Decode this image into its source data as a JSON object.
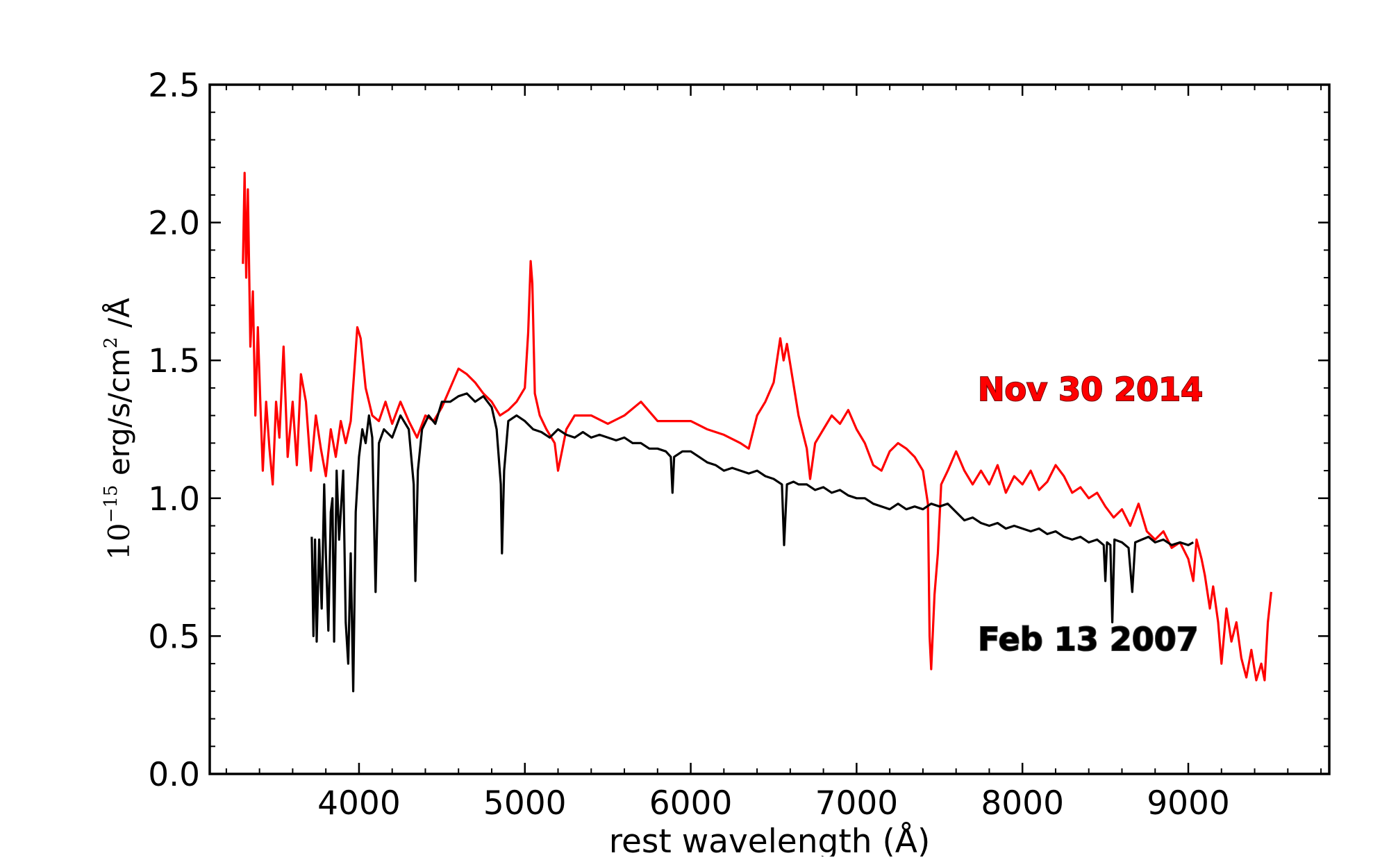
{
  "chart_data": {
    "type": "line",
    "title": "",
    "xlabel": "rest wavelength (Å)",
    "ylabel": {
      "base": "10",
      "exponent": "−15",
      "unit_main": " erg/s/cm",
      "unit_exp": "2",
      "unit_tail": " /Å"
    },
    "xlim": [
      3100,
      9850
    ],
    "ylim": [
      0.0,
      2.5
    ],
    "x_ticks": [
      4000,
      5000,
      6000,
      7000,
      8000,
      9000
    ],
    "x_tick_labels": [
      "4000",
      "5000",
      "6000",
      "7000",
      "8000",
      "9000"
    ],
    "y_ticks": [
      0.0,
      0.5,
      1.0,
      1.5,
      2.0,
      2.5
    ],
    "y_tick_labels": [
      "0.0",
      "0.5",
      "1.0",
      "1.5",
      "2.0",
      "2.5"
    ],
    "grid": false,
    "series": [
      {
        "name": "Nov 30 2014",
        "color": "#ff0000",
        "label_position": "right",
        "points": [
          [
            3300,
            1.85
          ],
          [
            3310,
            2.18
          ],
          [
            3320,
            1.8
          ],
          [
            3330,
            2.12
          ],
          [
            3345,
            1.55
          ],
          [
            3360,
            1.75
          ],
          [
            3375,
            1.3
          ],
          [
            3390,
            1.62
          ],
          [
            3405,
            1.35
          ],
          [
            3420,
            1.1
          ],
          [
            3440,
            1.35
          ],
          [
            3460,
            1.18
          ],
          [
            3480,
            1.05
          ],
          [
            3500,
            1.35
          ],
          [
            3520,
            1.22
          ],
          [
            3545,
            1.55
          ],
          [
            3570,
            1.15
          ],
          [
            3600,
            1.35
          ],
          [
            3625,
            1.12
          ],
          [
            3650,
            1.45
          ],
          [
            3680,
            1.35
          ],
          [
            3710,
            1.1
          ],
          [
            3740,
            1.3
          ],
          [
            3770,
            1.18
          ],
          [
            3800,
            1.08
          ],
          [
            3830,
            1.25
          ],
          [
            3860,
            1.15
          ],
          [
            3890,
            1.28
          ],
          [
            3920,
            1.2
          ],
          [
            3950,
            1.28
          ],
          [
            3970,
            1.45
          ],
          [
            3990,
            1.62
          ],
          [
            4010,
            1.58
          ],
          [
            4040,
            1.4
          ],
          [
            4080,
            1.3
          ],
          [
            4120,
            1.28
          ],
          [
            4160,
            1.35
          ],
          [
            4200,
            1.27
          ],
          [
            4250,
            1.35
          ],
          [
            4300,
            1.28
          ],
          [
            4350,
            1.22
          ],
          [
            4400,
            1.3
          ],
          [
            4450,
            1.28
          ],
          [
            4500,
            1.33
          ],
          [
            4550,
            1.4
          ],
          [
            4600,
            1.47
          ],
          [
            4650,
            1.45
          ],
          [
            4700,
            1.42
          ],
          [
            4750,
            1.38
          ],
          [
            4800,
            1.35
          ],
          [
            4850,
            1.3
          ],
          [
            4900,
            1.32
          ],
          [
            4950,
            1.35
          ],
          [
            5000,
            1.4
          ],
          [
            5020,
            1.6
          ],
          [
            5035,
            1.86
          ],
          [
            5045,
            1.78
          ],
          [
            5060,
            1.38
          ],
          [
            5090,
            1.3
          ],
          [
            5130,
            1.25
          ],
          [
            5180,
            1.2
          ],
          [
            5200,
            1.1
          ],
          [
            5250,
            1.25
          ],
          [
            5300,
            1.3
          ],
          [
            5400,
            1.3
          ],
          [
            5500,
            1.27
          ],
          [
            5600,
            1.3
          ],
          [
            5700,
            1.35
          ],
          [
            5800,
            1.28
          ],
          [
            5900,
            1.28
          ],
          [
            6000,
            1.28
          ],
          [
            6100,
            1.25
          ],
          [
            6200,
            1.23
          ],
          [
            6300,
            1.2
          ],
          [
            6350,
            1.18
          ],
          [
            6400,
            1.3
          ],
          [
            6450,
            1.35
          ],
          [
            6500,
            1.42
          ],
          [
            6540,
            1.58
          ],
          [
            6560,
            1.5
          ],
          [
            6580,
            1.56
          ],
          [
            6610,
            1.45
          ],
          [
            6650,
            1.3
          ],
          [
            6700,
            1.18
          ],
          [
            6720,
            1.07
          ],
          [
            6750,
            1.2
          ],
          [
            6800,
            1.25
          ],
          [
            6850,
            1.3
          ],
          [
            6900,
            1.27
          ],
          [
            6950,
            1.32
          ],
          [
            7000,
            1.25
          ],
          [
            7050,
            1.2
          ],
          [
            7100,
            1.12
          ],
          [
            7150,
            1.1
          ],
          [
            7200,
            1.17
          ],
          [
            7250,
            1.2
          ],
          [
            7300,
            1.18
          ],
          [
            7350,
            1.15
          ],
          [
            7400,
            1.1
          ],
          [
            7430,
            0.98
          ],
          [
            7440,
            0.5
          ],
          [
            7450,
            0.38
          ],
          [
            7470,
            0.65
          ],
          [
            7490,
            0.8
          ],
          [
            7510,
            1.05
          ],
          [
            7550,
            1.1
          ],
          [
            7600,
            1.17
          ],
          [
            7650,
            1.1
          ],
          [
            7700,
            1.05
          ],
          [
            7750,
            1.1
          ],
          [
            7800,
            1.05
          ],
          [
            7850,
            1.12
          ],
          [
            7900,
            1.02
          ],
          [
            7950,
            1.08
          ],
          [
            8000,
            1.05
          ],
          [
            8050,
            1.1
          ],
          [
            8100,
            1.03
          ],
          [
            8150,
            1.06
          ],
          [
            8200,
            1.12
          ],
          [
            8250,
            1.08
          ],
          [
            8300,
            1.02
          ],
          [
            8350,
            1.04
          ],
          [
            8400,
            1.0
          ],
          [
            8450,
            1.02
          ],
          [
            8500,
            0.97
          ],
          [
            8550,
            0.93
          ],
          [
            8600,
            0.96
          ],
          [
            8650,
            0.9
          ],
          [
            8700,
            0.98
          ],
          [
            8750,
            0.88
          ],
          [
            8800,
            0.85
          ],
          [
            8850,
            0.88
          ],
          [
            8900,
            0.82
          ],
          [
            8950,
            0.84
          ],
          [
            9000,
            0.78
          ],
          [
            9030,
            0.7
          ],
          [
            9050,
            0.85
          ],
          [
            9080,
            0.78
          ],
          [
            9100,
            0.72
          ],
          [
            9130,
            0.6
          ],
          [
            9150,
            0.68
          ],
          [
            9180,
            0.55
          ],
          [
            9200,
            0.4
          ],
          [
            9230,
            0.6
          ],
          [
            9260,
            0.48
          ],
          [
            9290,
            0.55
          ],
          [
            9320,
            0.42
          ],
          [
            9350,
            0.35
          ],
          [
            9380,
            0.45
          ],
          [
            9410,
            0.34
          ],
          [
            9440,
            0.4
          ],
          [
            9460,
            0.34
          ],
          [
            9480,
            0.55
          ],
          [
            9500,
            0.66
          ]
        ]
      },
      {
        "name": "Feb 13 2007",
        "color": "#000000",
        "label_position": "bottom-right",
        "points": [
          [
            3715,
            0.86
          ],
          [
            3725,
            0.5
          ],
          [
            3735,
            0.85
          ],
          [
            3745,
            0.48
          ],
          [
            3760,
            0.85
          ],
          [
            3775,
            0.6
          ],
          [
            3790,
            1.05
          ],
          [
            3800,
            0.8
          ],
          [
            3815,
            0.52
          ],
          [
            3830,
            0.95
          ],
          [
            3840,
            1.0
          ],
          [
            3850,
            0.48
          ],
          [
            3865,
            1.1
          ],
          [
            3880,
            0.85
          ],
          [
            3890,
            0.95
          ],
          [
            3905,
            1.1
          ],
          [
            3920,
            0.55
          ],
          [
            3935,
            0.4
          ],
          [
            3950,
            0.8
          ],
          [
            3965,
            0.3
          ],
          [
            3980,
            0.95
          ],
          [
            4000,
            1.15
          ],
          [
            4020,
            1.25
          ],
          [
            4040,
            1.2
          ],
          [
            4060,
            1.3
          ],
          [
            4080,
            1.22
          ],
          [
            4100,
            0.66
          ],
          [
            4120,
            1.2
          ],
          [
            4150,
            1.25
          ],
          [
            4200,
            1.22
          ],
          [
            4250,
            1.3
          ],
          [
            4300,
            1.25
          ],
          [
            4330,
            1.05
          ],
          [
            4340,
            0.7
          ],
          [
            4355,
            1.1
          ],
          [
            4380,
            1.25
          ],
          [
            4420,
            1.3
          ],
          [
            4460,
            1.27
          ],
          [
            4500,
            1.35
          ],
          [
            4550,
            1.35
          ],
          [
            4600,
            1.37
          ],
          [
            4650,
            1.38
          ],
          [
            4700,
            1.35
          ],
          [
            4750,
            1.37
          ],
          [
            4800,
            1.33
          ],
          [
            4830,
            1.25
          ],
          [
            4855,
            1.05
          ],
          [
            4862,
            0.8
          ],
          [
            4875,
            1.1
          ],
          [
            4900,
            1.28
          ],
          [
            4950,
            1.3
          ],
          [
            5000,
            1.28
          ],
          [
            5050,
            1.25
          ],
          [
            5100,
            1.24
          ],
          [
            5150,
            1.22
          ],
          [
            5200,
            1.25
          ],
          [
            5250,
            1.23
          ],
          [
            5300,
            1.22
          ],
          [
            5350,
            1.24
          ],
          [
            5400,
            1.22
          ],
          [
            5450,
            1.23
          ],
          [
            5500,
            1.22
          ],
          [
            5550,
            1.21
          ],
          [
            5600,
            1.22
          ],
          [
            5650,
            1.2
          ],
          [
            5700,
            1.2
          ],
          [
            5750,
            1.18
          ],
          [
            5800,
            1.18
          ],
          [
            5850,
            1.17
          ],
          [
            5880,
            1.15
          ],
          [
            5890,
            1.02
          ],
          [
            5900,
            1.15
          ],
          [
            5950,
            1.17
          ],
          [
            6000,
            1.17
          ],
          [
            6050,
            1.15
          ],
          [
            6100,
            1.13
          ],
          [
            6150,
            1.12
          ],
          [
            6200,
            1.1
          ],
          [
            6250,
            1.11
          ],
          [
            6300,
            1.1
          ],
          [
            6350,
            1.09
          ],
          [
            6400,
            1.1
          ],
          [
            6450,
            1.08
          ],
          [
            6500,
            1.07
          ],
          [
            6550,
            1.05
          ],
          [
            6563,
            0.83
          ],
          [
            6580,
            1.05
          ],
          [
            6620,
            1.06
          ],
          [
            6650,
            1.05
          ],
          [
            6700,
            1.05
          ],
          [
            6750,
            1.03
          ],
          [
            6800,
            1.04
          ],
          [
            6850,
            1.02
          ],
          [
            6900,
            1.03
          ],
          [
            6950,
            1.01
          ],
          [
            7000,
            1.0
          ],
          [
            7050,
            1.0
          ],
          [
            7100,
            0.98
          ],
          [
            7150,
            0.97
          ],
          [
            7200,
            0.96
          ],
          [
            7250,
            0.98
          ],
          [
            7300,
            0.96
          ],
          [
            7350,
            0.97
          ],
          [
            7400,
            0.96
          ],
          [
            7450,
            0.98
          ],
          [
            7500,
            0.97
          ],
          [
            7550,
            0.98
          ],
          [
            7600,
            0.95
          ],
          [
            7650,
            0.92
          ],
          [
            7700,
            0.93
          ],
          [
            7750,
            0.91
          ],
          [
            7800,
            0.9
          ],
          [
            7850,
            0.91
          ],
          [
            7900,
            0.89
          ],
          [
            7950,
            0.9
          ],
          [
            8000,
            0.89
          ],
          [
            8050,
            0.88
          ],
          [
            8100,
            0.89
          ],
          [
            8150,
            0.87
          ],
          [
            8200,
            0.88
          ],
          [
            8250,
            0.86
          ],
          [
            8300,
            0.85
          ],
          [
            8350,
            0.86
          ],
          [
            8400,
            0.84
          ],
          [
            8450,
            0.85
          ],
          [
            8490,
            0.83
          ],
          [
            8500,
            0.7
          ],
          [
            8510,
            0.84
          ],
          [
            8530,
            0.83
          ],
          [
            8542,
            0.55
          ],
          [
            8555,
            0.85
          ],
          [
            8600,
            0.84
          ],
          [
            8640,
            0.82
          ],
          [
            8662,
            0.66
          ],
          [
            8680,
            0.84
          ],
          [
            8720,
            0.85
          ],
          [
            8760,
            0.86
          ],
          [
            8800,
            0.84
          ],
          [
            8850,
            0.85
          ],
          [
            8900,
            0.83
          ],
          [
            8950,
            0.84
          ],
          [
            9000,
            0.83
          ],
          [
            9030,
            0.84
          ]
        ]
      }
    ]
  }
}
